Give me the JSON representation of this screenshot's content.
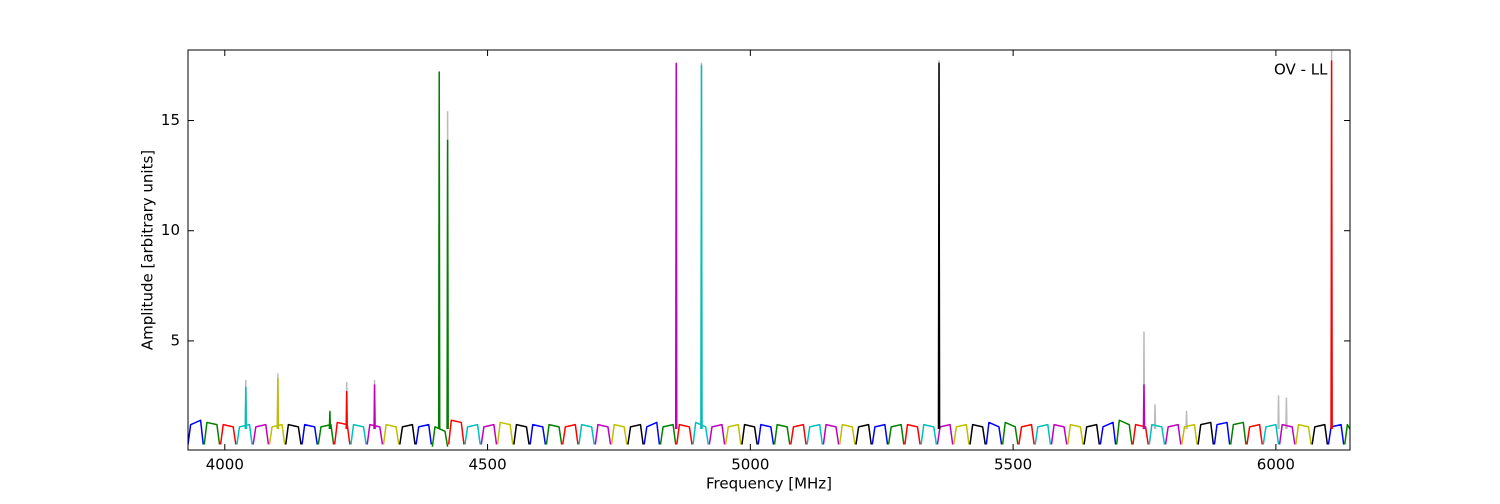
{
  "chart_data": {
    "type": "line",
    "xlabel": "Frequency [MHz]",
    "ylabel": "Amplitude [arbitrary units]",
    "annotation": "OV - LL",
    "xlim": [
      3930,
      6141
    ],
    "ylim": [
      0.05,
      18.2
    ],
    "xticks": [
      4000,
      4500,
      5000,
      5500,
      6000
    ],
    "yticks": [
      5,
      10,
      15
    ],
    "series": [
      {
        "color": "#bbbbbb",
        "x": [
          4039,
          4040,
          4041,
          null,
          4100,
          4101,
          4102,
          null,
          4231,
          4232,
          4233,
          null,
          4284,
          4285,
          4286,
          null,
          4423,
          4424,
          4425,
          null,
          4906,
          4907,
          4908,
          null,
          5358,
          5359,
          5360,
          null,
          5748,
          5749,
          5750,
          null,
          5769,
          5770,
          5771,
          null,
          5829,
          5830,
          5831,
          null,
          6004,
          6005,
          6006,
          null,
          6019,
          6020,
          6021,
          null,
          6105,
          6106,
          6107
        ],
        "values": [
          1.0,
          3.2,
          1.0,
          null,
          1.0,
          3.5,
          1.0,
          null,
          1.0,
          3.1,
          1.0,
          null,
          1.0,
          3.2,
          1.0,
          null,
          1.0,
          15.4,
          1.0,
          null,
          1.0,
          17.6,
          1.0,
          null,
          1.0,
          17.7,
          1.0,
          null,
          1.0,
          5.4,
          1.0,
          null,
          1.0,
          2.1,
          1.0,
          null,
          1.0,
          1.8,
          1.0,
          null,
          1.0,
          2.5,
          1.0,
          null,
          1.0,
          2.4,
          1.0,
          null,
          1.0,
          18.2,
          1.0
        ]
      },
      {
        "color": "#0000ff",
        "x": [
          3930,
          3935,
          3954,
          3959,
          null,
          4147,
          4152,
          4171,
          4176,
          null,
          4364,
          4369,
          4388,
          4393,
          null,
          4581,
          4586,
          4605,
          4610,
          null,
          4798,
          4803,
          4822,
          4827,
          null,
          5015,
          5020,
          5039,
          5044,
          null,
          5232,
          5237,
          5256,
          5261,
          null,
          5449,
          5454,
          5473,
          5478,
          null,
          5666,
          5671,
          5690,
          5695,
          null,
          5883,
          5888,
          5907,
          5912,
          null,
          6100,
          6105,
          6124,
          6129
        ],
        "values": [
          0.3,
          1.2,
          1.4,
          0.3,
          null,
          0.3,
          1.2,
          1.1,
          0.3,
          null,
          0.3,
          1.1,
          1.2,
          0.3,
          null,
          0.3,
          1.2,
          1.1,
          0.3,
          null,
          0.3,
          1.1,
          1.3,
          0.3,
          null,
          0.3,
          1.2,
          1.1,
          0.3,
          null,
          0.3,
          1.1,
          1.2,
          0.3,
          null,
          0.3,
          1.3,
          1.1,
          0.3,
          null,
          0.3,
          1.1,
          1.3,
          0.3,
          null,
          0.3,
          1.2,
          1.3,
          0.3,
          null,
          0.3,
          1.1,
          1.2,
          0.3
        ]
      },
      {
        "color": "#008000",
        "x": [
          3961,
          3966,
          3985,
          3990,
          null,
          4178,
          4183,
          4202,
          4207,
          null,
          4395,
          4400,
          4419,
          4424,
          null,
          4612,
          4617,
          4636,
          4641,
          null,
          4829,
          4834,
          4853,
          4858,
          null,
          5046,
          5051,
          5070,
          5075,
          null,
          5263,
          5268,
          5287,
          5292,
          null,
          5480,
          5485,
          5504,
          5509,
          null,
          5697,
          5702,
          5721,
          5726,
          null,
          5914,
          5919,
          5938,
          5943,
          null,
          6131,
          6136,
          6141,
          null,
          4199,
          4200,
          4201,
          null,
          4407,
          4408,
          4409,
          null,
          4423,
          4424,
          4425
        ],
        "values": [
          0.3,
          1.3,
          1.2,
          0.3,
          null,
          0.3,
          1.1,
          1.2,
          0.3,
          null,
          0.2,
          1.1,
          0.9,
          0.2,
          null,
          0.3,
          1.2,
          1.1,
          0.3,
          null,
          0.3,
          1.1,
          1.2,
          0.3,
          null,
          0.3,
          1.2,
          1.1,
          0.3,
          null,
          0.3,
          1.1,
          1.2,
          0.3,
          null,
          0.3,
          1.3,
          1.1,
          0.3,
          null,
          0.3,
          1.4,
          1.2,
          0.3,
          null,
          0.3,
          1.2,
          1.3,
          0.3,
          null,
          0.3,
          1.2,
          1.0,
          null,
          1.0,
          1.8,
          1.0,
          null,
          1.0,
          17.2,
          1.0,
          null,
          1.0,
          14.1,
          1.0
        ]
      },
      {
        "color": "#ff0000",
        "x": [
          3992,
          3997,
          4016,
          4021,
          null,
          4209,
          4214,
          4233,
          4238,
          null,
          4426,
          4431,
          4450,
          4455,
          null,
          4643,
          4648,
          4667,
          4672,
          null,
          4860,
          4865,
          4884,
          4889,
          null,
          5077,
          5082,
          5101,
          5106,
          null,
          5294,
          5299,
          5318,
          5323,
          null,
          5511,
          5516,
          5535,
          5540,
          null,
          5728,
          5733,
          5752,
          5757,
          null,
          5945,
          5950,
          5969,
          5974,
          null,
          4231,
          4232,
          4233,
          null,
          6105,
          6106,
          6107
        ],
        "values": [
          0.3,
          1.2,
          1.1,
          0.3,
          null,
          0.3,
          1.3,
          1.2,
          0.3,
          null,
          0.3,
          1.4,
          1.3,
          0.3,
          null,
          0.3,
          1.1,
          1.2,
          0.3,
          null,
          0.3,
          1.2,
          1.1,
          0.3,
          null,
          0.3,
          1.1,
          1.2,
          0.3,
          null,
          0.3,
          1.2,
          1.1,
          0.3,
          null,
          0.3,
          1.1,
          1.2,
          0.3,
          null,
          0.3,
          1.2,
          1.1,
          0.3,
          null,
          0.3,
          1.1,
          1.2,
          0.3,
          null,
          1.0,
          2.7,
          1.0,
          null,
          1.0,
          17.7,
          1.0
        ]
      },
      {
        "color": "#00bfbf",
        "x": [
          4023,
          4028,
          4047,
          4052,
          null,
          4240,
          4245,
          4264,
          4269,
          null,
          4457,
          4462,
          4481,
          4486,
          null,
          4674,
          4679,
          4698,
          4703,
          null,
          4891,
          4896,
          4915,
          4920,
          null,
          5108,
          5113,
          5132,
          5137,
          null,
          5325,
          5330,
          5349,
          5354,
          null,
          5542,
          5547,
          5566,
          5571,
          null,
          5759,
          5764,
          5783,
          5788,
          null,
          5976,
          5981,
          6000,
          6005,
          null,
          4039,
          4040,
          4041,
          null,
          4906,
          4907,
          4908
        ],
        "values": [
          0.3,
          1.1,
          1.2,
          0.3,
          null,
          0.3,
          1.2,
          1.1,
          0.3,
          null,
          0.3,
          1.1,
          1.2,
          0.3,
          null,
          0.3,
          1.2,
          1.1,
          0.3,
          null,
          0.3,
          1.3,
          1.1,
          0.3,
          null,
          0.3,
          1.1,
          1.2,
          0.3,
          null,
          0.3,
          1.2,
          1.1,
          0.3,
          null,
          0.3,
          1.1,
          1.2,
          0.3,
          null,
          0.3,
          1.2,
          1.1,
          0.3,
          null,
          0.3,
          1.1,
          1.2,
          0.3,
          null,
          1.0,
          2.9,
          1.0,
          null,
          1.0,
          17.5,
          1.0
        ]
      },
      {
        "color": "#bf00bf",
        "x": [
          4054,
          4059,
          4078,
          4083,
          null,
          4271,
          4276,
          4295,
          4300,
          null,
          4488,
          4493,
          4512,
          4517,
          null,
          4705,
          4710,
          4729,
          4734,
          null,
          4922,
          4927,
          4946,
          4951,
          null,
          5139,
          5144,
          5163,
          5168,
          null,
          5356,
          5361,
          5380,
          5385,
          null,
          5573,
          5578,
          5597,
          5602,
          null,
          5790,
          5795,
          5814,
          5819,
          null,
          6007,
          6012,
          6031,
          6036,
          null,
          4284,
          4285,
          4286,
          null,
          4858,
          4859,
          4860,
          null,
          5748,
          5749,
          5750
        ],
        "values": [
          0.3,
          1.1,
          1.2,
          0.3,
          null,
          0.3,
          1.2,
          1.1,
          0.3,
          null,
          0.3,
          1.1,
          1.2,
          0.3,
          null,
          0.3,
          1.2,
          1.1,
          0.3,
          null,
          0.3,
          1.1,
          1.2,
          0.3,
          null,
          0.3,
          1.2,
          1.1,
          0.3,
          null,
          0.3,
          1.1,
          1.2,
          0.3,
          null,
          0.3,
          1.2,
          1.1,
          0.3,
          null,
          0.3,
          1.1,
          1.2,
          0.3,
          null,
          0.3,
          1.2,
          1.1,
          0.3,
          null,
          1.0,
          3.0,
          1.0,
          null,
          1.0,
          17.6,
          1.0,
          null,
          1.0,
          3.0,
          1.0
        ]
      },
      {
        "color": "#bfbf00",
        "x": [
          4085,
          4090,
          4109,
          4114,
          null,
          4302,
          4307,
          4326,
          4331,
          null,
          4519,
          4524,
          4543,
          4548,
          null,
          4736,
          4741,
          4760,
          4765,
          null,
          4953,
          4958,
          4977,
          4982,
          null,
          5170,
          5175,
          5194,
          5199,
          null,
          5387,
          5392,
          5411,
          5416,
          null,
          5604,
          5609,
          5628,
          5633,
          null,
          5821,
          5826,
          5845,
          5850,
          null,
          6038,
          6043,
          6062,
          6067,
          null,
          4100,
          4101,
          4102
        ],
        "values": [
          0.3,
          1.1,
          1.2,
          0.3,
          null,
          0.3,
          1.2,
          1.1,
          0.3,
          null,
          0.3,
          1.3,
          1.2,
          0.3,
          null,
          0.3,
          1.2,
          1.1,
          0.3,
          null,
          0.3,
          1.1,
          1.2,
          0.3,
          null,
          0.3,
          1.2,
          1.1,
          0.3,
          null,
          0.3,
          1.1,
          1.2,
          0.3,
          null,
          0.3,
          1.2,
          1.1,
          0.3,
          null,
          0.3,
          1.1,
          1.2,
          0.3,
          null,
          0.3,
          1.2,
          1.1,
          0.3,
          null,
          1.0,
          3.3,
          1.0
        ]
      },
      {
        "color": "#000000",
        "x": [
          4116,
          4121,
          4140,
          4145,
          null,
          4333,
          4338,
          4357,
          4362,
          null,
          4550,
          4555,
          4574,
          4579,
          null,
          4767,
          4772,
          4791,
          4796,
          null,
          4984,
          4989,
          5008,
          5013,
          null,
          5201,
          5206,
          5225,
          5230,
          null,
          5418,
          5423,
          5442,
          5447,
          null,
          5635,
          5640,
          5659,
          5664,
          null,
          5852,
          5857,
          5876,
          5881,
          null,
          6069,
          6074,
          6093,
          6098,
          null,
          5358,
          5359,
          5360
        ],
        "values": [
          0.3,
          1.2,
          1.1,
          0.3,
          null,
          0.3,
          1.1,
          1.2,
          0.3,
          null,
          0.3,
          1.2,
          1.1,
          0.3,
          null,
          0.3,
          1.1,
          1.2,
          0.3,
          null,
          0.3,
          1.2,
          1.1,
          0.3,
          null,
          0.3,
          1.1,
          1.2,
          0.3,
          null,
          0.3,
          1.2,
          1.1,
          0.3,
          null,
          0.3,
          1.1,
          1.2,
          0.3,
          null,
          0.3,
          1.2,
          1.3,
          0.3,
          null,
          0.3,
          1.1,
          1.2,
          0.3,
          null,
          1.0,
          17.6,
          1.0
        ]
      }
    ]
  }
}
